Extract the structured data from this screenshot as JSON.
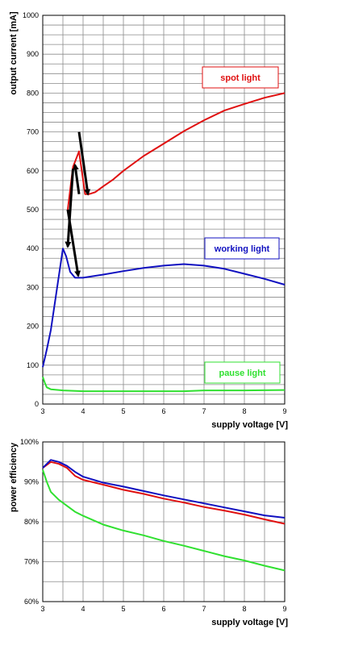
{
  "chart_data": [
    {
      "type": "line",
      "title": "",
      "xlabel": "supply voltage [V]",
      "ylabel": "output current [mA]",
      "xlim": [
        3,
        9
      ],
      "ylim": [
        0,
        1000
      ],
      "xticks": [
        "3",
        "4",
        "5",
        "6",
        "7",
        "8",
        "9"
      ],
      "yticks": [
        "0",
        "100",
        "200",
        "300",
        "400",
        "500",
        "600",
        "700",
        "800",
        "900",
        "1000"
      ],
      "grid": true,
      "series": [
        {
          "name": "spot light",
          "color": "#e01010",
          "x": [
            3.62,
            3.75,
            3.9,
            4.05,
            4.15,
            4.3,
            4.5,
            4.75,
            5.0,
            5.5,
            6.0,
            6.5,
            7.0,
            7.5,
            8.0,
            8.5,
            9.0
          ],
          "y": [
            500,
            610,
            650,
            540,
            540,
            545,
            560,
            578,
            600,
            638,
            670,
            702,
            730,
            755,
            772,
            788,
            800
          ]
        },
        {
          "name": "working light",
          "color": "#1010c0",
          "x": [
            3.0,
            3.1,
            3.2,
            3.3,
            3.4,
            3.5,
            3.58,
            3.68,
            3.8,
            4.0,
            4.5,
            5.0,
            5.5,
            6.0,
            6.5,
            7.0,
            7.5,
            8.0,
            8.5,
            9.0
          ],
          "y": [
            95,
            140,
            190,
            260,
            330,
            400,
            380,
            340,
            325,
            325,
            333,
            342,
            350,
            356,
            360,
            356,
            348,
            335,
            322,
            307
          ]
        },
        {
          "name": "pause light",
          "color": "#30e030",
          "x": [
            3.0,
            3.05,
            3.1,
            3.2,
            3.5,
            4.0,
            5.0,
            6.0,
            6.5,
            7.0,
            8.0,
            9.0
          ],
          "y": [
            70,
            55,
            43,
            38,
            35,
            33,
            33,
            33,
            33,
            35,
            35,
            36
          ]
        }
      ],
      "annotations": [
        {
          "type": "arrow",
          "from": [
            3.62,
            500
          ],
          "to": [
            3.88,
            330
          ]
        },
        {
          "type": "arrow",
          "from": [
            3.75,
            605
          ],
          "to": [
            3.62,
            405
          ]
        },
        {
          "type": "arrow",
          "from": [
            3.9,
            700
          ],
          "to": [
            4.12,
            540
          ]
        },
        {
          "type": "arrow",
          "from": [
            3.9,
            540
          ],
          "to": [
            3.8,
            615
          ]
        }
      ]
    },
    {
      "type": "line",
      "title": "",
      "xlabel": "supply voltage [V]",
      "ylabel": "power efficiency",
      "xlim": [
        3,
        9
      ],
      "ylim": [
        60,
        100
      ],
      "xticks": [
        "3",
        "4",
        "5",
        "6",
        "7",
        "8",
        "9"
      ],
      "yticks": [
        "60%",
        "70%",
        "80%",
        "90%",
        "100%"
      ],
      "grid": true,
      "series": [
        {
          "color": "#e01010",
          "x": [
            3.0,
            3.2,
            3.4,
            3.6,
            3.8,
            4.0,
            4.5,
            5.0,
            5.5,
            6.0,
            6.5,
            7.0,
            7.5,
            8.0,
            8.5,
            9.0
          ],
          "y": [
            93.5,
            95.0,
            94.5,
            93.5,
            91.5,
            90.5,
            89.3,
            88.0,
            87.0,
            85.8,
            84.8,
            83.7,
            82.8,
            81.8,
            80.6,
            79.5
          ]
        },
        {
          "color": "#1010c0",
          "x": [
            3.0,
            3.2,
            3.4,
            3.6,
            3.8,
            4.0,
            4.5,
            5.0,
            5.5,
            6.0,
            6.5,
            7.0,
            7.5,
            8.0,
            8.5,
            9.0
          ],
          "y": [
            93.5,
            95.5,
            95.0,
            94.0,
            92.5,
            91.3,
            89.8,
            88.8,
            87.7,
            86.6,
            85.6,
            84.6,
            83.6,
            82.6,
            81.6,
            81.0
          ]
        },
        {
          "color": "#30e030",
          "x": [
            3.0,
            3.1,
            3.2,
            3.4,
            3.6,
            3.8,
            4.0,
            4.5,
            5.0,
            5.5,
            6.0,
            6.5,
            7.0,
            7.5,
            8.0,
            8.5,
            9.0
          ],
          "y": [
            93.0,
            90.0,
            87.5,
            85.5,
            84.0,
            82.5,
            81.5,
            79.3,
            77.8,
            76.6,
            75.2,
            74.0,
            72.7,
            71.4,
            70.3,
            69.0,
            67.8
          ]
        }
      ]
    }
  ]
}
